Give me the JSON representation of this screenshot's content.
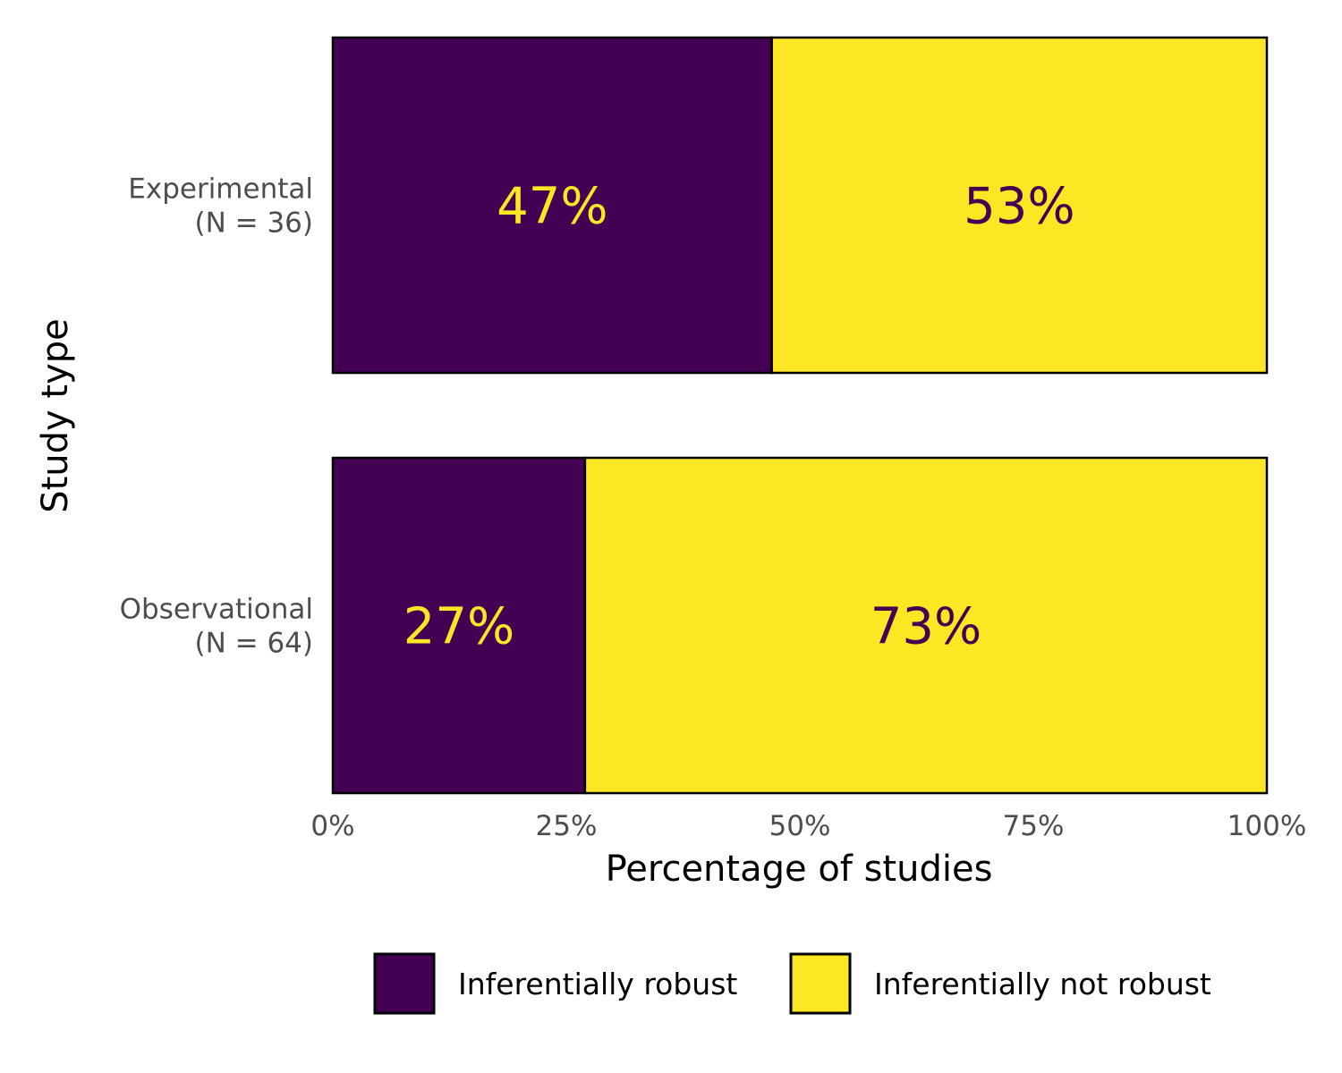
{
  "chart_data": {
    "type": "bar",
    "orientation": "horizontal",
    "stacked": true,
    "categories": [
      "Experimental\n(N = 36)",
      "Observational\n(N = 64)"
    ],
    "series": [
      {
        "name": "Inferentially robust",
        "values": [
          47,
          27
        ],
        "color": "#440154",
        "label_color": "#FDE725"
      },
      {
        "name": "Inferentially not robust",
        "values": [
          53,
          73
        ],
        "color": "#FDE725",
        "label_color": "#440154"
      }
    ],
    "data_labels": [
      [
        "47%",
        "27%"
      ],
      [
        "53%",
        "73%"
      ]
    ],
    "xlabel": "Percentage of studies",
    "ylabel": "Study type",
    "xlim": [
      0,
      100
    ],
    "xticks": [
      0,
      25,
      50,
      75,
      100
    ],
    "xtick_labels": [
      "0%",
      "25%",
      "50%",
      "75%",
      "100%"
    ],
    "grid": false,
    "legend_position": "bottom"
  }
}
